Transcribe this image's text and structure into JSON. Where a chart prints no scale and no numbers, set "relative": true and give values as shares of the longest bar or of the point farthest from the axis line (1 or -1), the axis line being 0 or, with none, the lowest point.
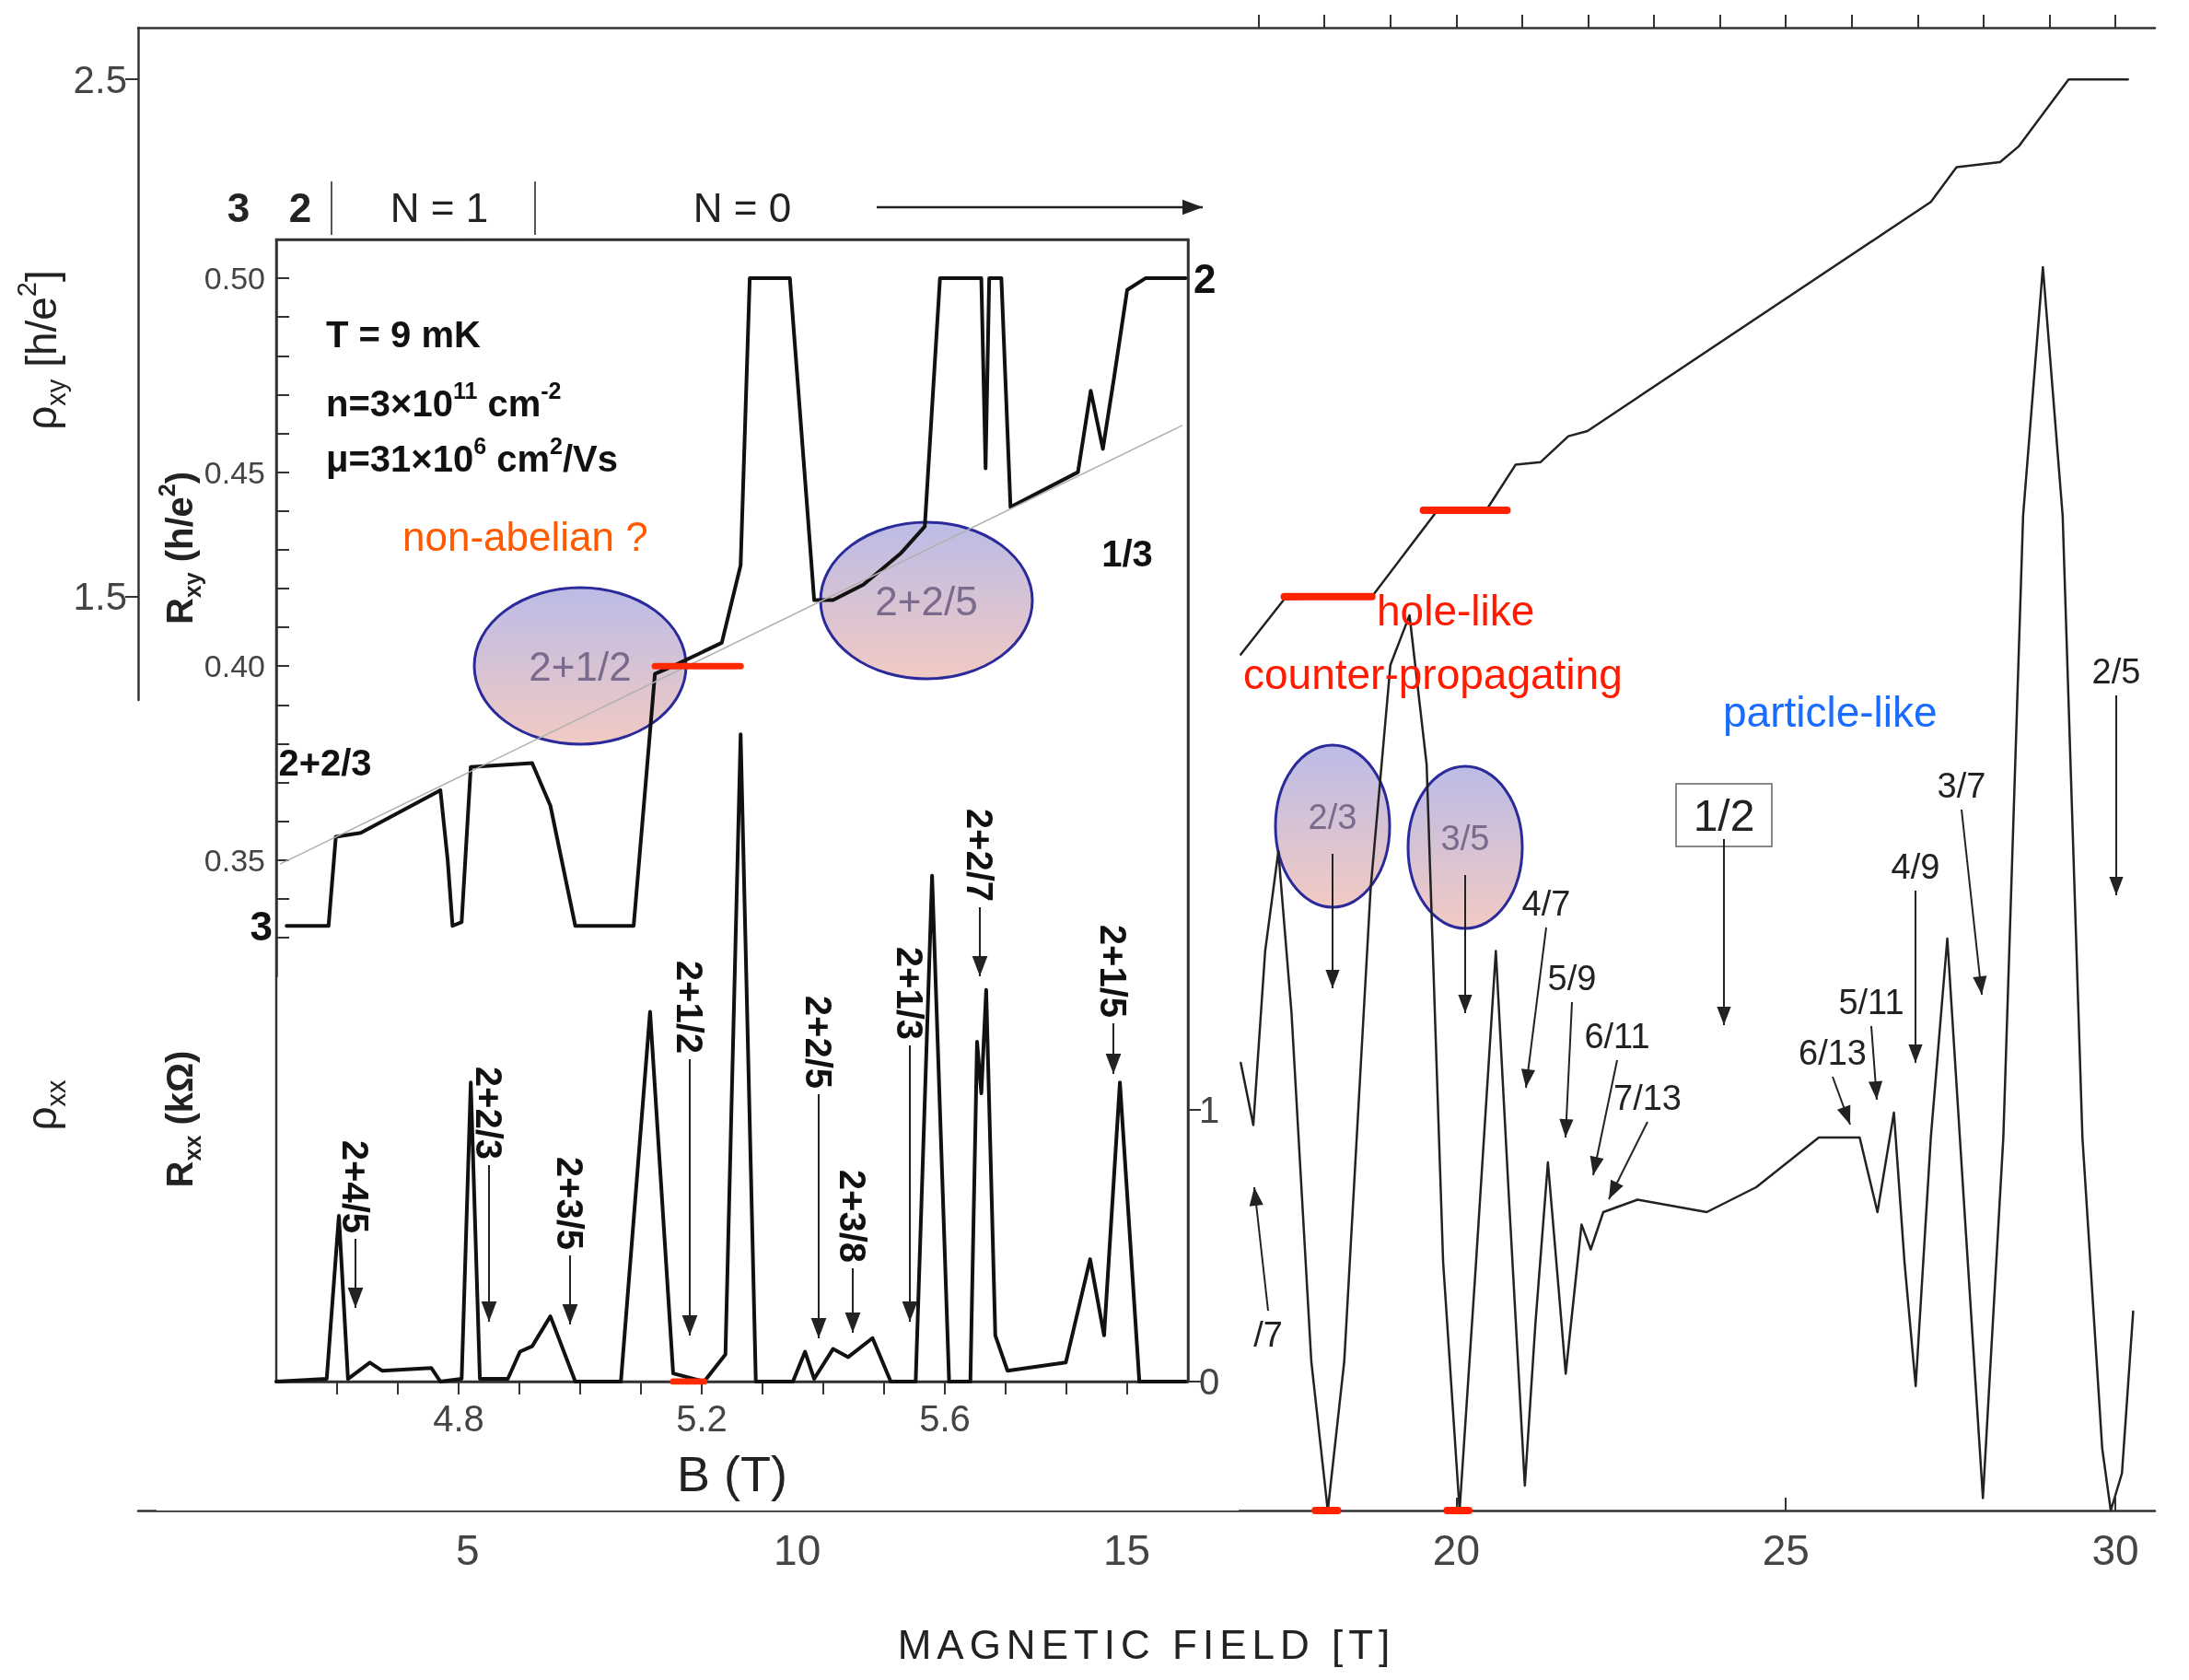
{
  "chart_data": [
    {
      "type": "line",
      "marker": "none",
      "tick_labels": "y",
      "xlim": [
        4.5,
        6.0
      ],
      "ylim": [
        0.32,
        0.51
      ],
      "yticks": [
        {
          "value": 0.33,
          "label": null
        },
        {
          "value": 0.34,
          "label": null
        },
        {
          "value": 0.35,
          "label": "0.35"
        },
        {
          "value": 0.36,
          "label": null
        },
        {
          "value": 0.37,
          "label": null
        },
        {
          "value": 0.38,
          "label": null
        },
        {
          "value": 0.39,
          "label": null
        },
        {
          "value": 0.4,
          "label": "0.40"
        },
        {
          "value": 0.41,
          "label": null
        },
        {
          "value": 0.42,
          "label": null
        },
        {
          "value": 0.43,
          "label": null
        },
        {
          "value": 0.44,
          "label": null
        },
        {
          "value": 0.45,
          "label": "0.45"
        },
        {
          "value": 0.46,
          "label": null
        },
        {
          "value": 0.47,
          "label": null
        },
        {
          "value": 0.48,
          "label": null
        },
        {
          "value": 0.49,
          "label": null
        },
        {
          "value": 0.5,
          "label": "0.50"
        }
      ],
      "ylabel": "R$_{xy}$ (h/e$^{2}$)",
      "series": [
        {
          "color": "#111111",
          "x": [
            4.517,
            4.586,
            4.598,
            4.639,
            4.77,
            4.782,
            4.79,
            4.805,
            4.82,
            4.921,
            4.951,
            4.992,
            5.088,
            5.123,
            5.153,
            5.233,
            5.264,
            5.279,
            5.345,
            5.385,
            5.416,
            5.466,
            5.527,
            5.567,
            5.592,
            5.66,
            5.667,
            5.673,
            5.693,
            5.708,
            5.819,
            5.84,
            5.86,
            5.878,
            5.9,
            5.93,
            5.996
          ],
          "values": [
            0.333,
            0.333,
            0.356,
            0.357,
            0.368,
            0.35,
            0.333,
            0.334,
            0.374,
            0.375,
            0.364,
            0.333,
            0.333,
            0.398,
            0.4,
            0.406,
            0.426,
            0.5,
            0.5,
            0.417,
            0.417,
            0.421,
            0.429,
            0.436,
            0.5,
            0.5,
            0.451,
            0.5,
            0.5,
            0.441,
            0.45,
            0.471,
            0.456,
            0.474,
            0.497,
            0.5,
            0.5
          ]
        },
        {
          "color": "#b0b0b0",
          "x": [
            4.507,
            5.99
          ],
          "values": [
            0.349,
            0.462
          ]
        },
        {
          "color": "#ff2a00",
          "x": [
            5.123,
            5.264
          ],
          "values": [
            0.4,
            0.4
          ]
        }
      ],
      "annotations": [
        "3",
        "2",
        "N = 1",
        "N = 0",
        "T = 9 mK",
        "n=3×10$^{11}$ cm$^{-2}$",
        "μ=31×10$^{6}$ cm$^{2}$/Vs",
        "non-abelian ?",
        "2+2/3",
        "3",
        "2",
        "2+1/2",
        "2+2/5",
        "1/3"
      ]
    },
    {
      "type": "line",
      "marker": "none",
      "xlim": [
        4.5,
        6.0
      ],
      "ylim": [
        0,
        4.2
      ],
      "yticks": [
        0,
        1
      ],
      "xticks": [
        {
          "value": 4.6,
          "label": null
        },
        {
          "value": 4.7,
          "label": null
        },
        {
          "value": 4.8,
          "label": "4.8"
        },
        {
          "value": 4.9,
          "label": null
        },
        {
          "value": 5.0,
          "label": null
        },
        {
          "value": 5.1,
          "label": null
        },
        {
          "value": 5.2,
          "label": "5.2"
        },
        {
          "value": 5.3,
          "label": null
        },
        {
          "value": 5.4,
          "label": null
        },
        {
          "value": 5.5,
          "label": null
        },
        {
          "value": 5.6,
          "label": "5.6"
        },
        {
          "value": 5.7,
          "label": null
        },
        {
          "value": 5.8,
          "label": null
        },
        {
          "value": 5.9,
          "label": null
        }
      ],
      "xlabel": "B (T)",
      "ylabel": "R$_{xx}$ (kΩ)",
      "series": [
        {
          "color": "#111111",
          "x": [
            4.5,
            4.583,
            4.603,
            4.618,
            4.654,
            4.674,
            4.755,
            4.77,
            4.805,
            4.82,
            4.835,
            4.881,
            4.901,
            4.921,
            4.951,
            4.992,
            5.067,
            5.115,
            5.153,
            5.204,
            5.239,
            5.264,
            5.289,
            5.35,
            5.37,
            5.385,
            5.416,
            5.441,
            5.481,
            5.511,
            5.552,
            5.579,
            5.607,
            5.642,
            5.653,
            5.66,
            5.668,
            5.683,
            5.703,
            5.799,
            5.839,
            5.862,
            5.888,
            5.92,
            5.996
          ],
          "values": [
            0,
            0.01,
            0.61,
            0.01,
            0.07,
            0.04,
            0.05,
            0,
            0.01,
            1.1,
            0.01,
            0.01,
            0.11,
            0.13,
            0.24,
            0,
            0,
            1.36,
            0.03,
            0,
            0.1,
            2.38,
            0,
            0,
            0.11,
            0.01,
            0.12,
            0.09,
            0.16,
            0,
            0,
            1.86,
            0,
            0,
            1.25,
            1.06,
            1.44,
            0.17,
            0.04,
            0.07,
            0.45,
            0.17,
            1.1,
            0,
            0
          ]
        },
        {
          "color": "#ff2a00",
          "x": [
            5.153,
            5.204
          ],
          "values": [
            0,
            0
          ]
        }
      ],
      "annotations": [
        "2+4/5",
        "2+2/3",
        "2+3/5",
        "2+1/2",
        "2+2/5",
        "2+3/8",
        "2+1/3",
        "2+2/7",
        "2+1/5"
      ]
    },
    {
      "type": "line",
      "marker": "none",
      "tick_labels": "y",
      "xlim": [
        0,
        30.6
      ],
      "ylim": [
        1.3,
        2.6
      ],
      "yticks": [
        1.5,
        2.5
      ],
      "xticks": [
        {
          "value": 17,
          "label": null
        },
        {
          "value": 18,
          "label": null
        },
        {
          "value": 19,
          "label": null
        },
        {
          "value": 20,
          "label": null
        },
        {
          "value": 21,
          "label": null
        },
        {
          "value": 22,
          "label": null
        },
        {
          "value": 23,
          "label": null
        },
        {
          "value": 24,
          "label": null
        },
        {
          "value": 25,
          "label": null
        },
        {
          "value": 26,
          "label": null
        },
        {
          "value": 27,
          "label": null
        },
        {
          "value": 28,
          "label": null
        },
        {
          "value": 29,
          "label": null
        },
        {
          "value": 30,
          "label": null
        }
      ],
      "ylabel": "ρ$_{xy}$ [h/e$^{2}$]",
      "series": [
        {
          "color": "#222222",
          "x": [
            16.73,
            17.39,
            18.72,
            19.71,
            20.47,
            20.9,
            21.28,
            21.7,
            21.99,
            27.2,
            27.59,
            28.25,
            28.53,
            29.29,
            30.19
          ],
          "values": [
            1.388,
            1.495,
            1.5,
            1.666,
            1.67,
            1.755,
            1.76,
            1.81,
            1.82,
            2.263,
            2.33,
            2.34,
            2.37,
            2.5,
            2.5
          ]
        },
        {
          "color": "#ff2200",
          "x": [
            17.39,
            18.72
          ],
          "values": [
            1.5,
            1.5
          ]
        },
        {
          "color": "#ff2200",
          "x": [
            19.5,
            20.77
          ],
          "values": [
            1.667,
            1.667
          ]
        }
      ],
      "annotations": [
        "hole-like",
        "counter-propagating",
        "particle-like"
      ]
    },
    {
      "type": "line",
      "marker": "none",
      "relative": true,
      "xlim": [
        0,
        30.6
      ],
      "xticks": [
        5,
        10,
        15,
        20,
        25,
        30
      ],
      "xlabel": "MAGNETIC FIELD [T]",
      "ylabel": "ρ$_{xx}$",
      "series": [
        {
          "color": "#222222",
          "x": [
            16.73,
            16.92,
            17.1,
            17.3,
            17.5,
            17.8,
            18.05,
            18.3,
            18.7,
            19.0,
            19.29,
            19.55,
            19.8,
            20.05,
            20.3,
            20.6,
            20.8,
            21.04,
            21.2,
            21.39,
            21.55,
            21.66,
            21.8,
            21.9,
            22.04,
            22.23,
            22.75,
            23.8,
            24.55,
            25.5,
            25.93,
            26.12,
            26.39,
            26.64,
            26.8,
            26.97,
            27.2,
            27.45,
            27.7,
            27.99,
            28.3,
            28.6,
            28.9,
            29.2,
            29.5,
            29.8,
            29.93,
            30.1,
            30.27
          ],
          "values": [
            0.36,
            0.31,
            0.45,
            0.53,
            0.4,
            0.12,
            0,
            0.12,
            0.5,
            0.68,
            0.72,
            0.6,
            0.2,
            0,
            0.2,
            0.45,
            0.25,
            0.02,
            0.15,
            0.28,
            0.18,
            0.11,
            0.18,
            0.23,
            0.21,
            0.24,
            0.25,
            0.24,
            0.26,
            0.3,
            0.3,
            0.3,
            0.24,
            0.32,
            0.2,
            0.1,
            0.3,
            0.46,
            0.25,
            0.01,
            0.3,
            0.8,
            1,
            0.8,
            0.3,
            0.05,
            0,
            0.03,
            0.16
          ]
        },
        {
          "color": "#ff2200",
          "x": [
            17.86,
            18.2
          ],
          "values": [
            0,
            0
          ]
        },
        {
          "color": "#ff2200",
          "x": [
            19.86,
            20.19
          ],
          "values": [
            0,
            0
          ]
        }
      ],
      "annotations": [
        "/7",
        "2/3",
        "3/5",
        "4/7",
        "5/9",
        "6/11",
        "7/13",
        "1/2",
        "6/13",
        "5/11",
        "4/9",
        "3/7",
        "2/5"
      ]
    }
  ]
}
